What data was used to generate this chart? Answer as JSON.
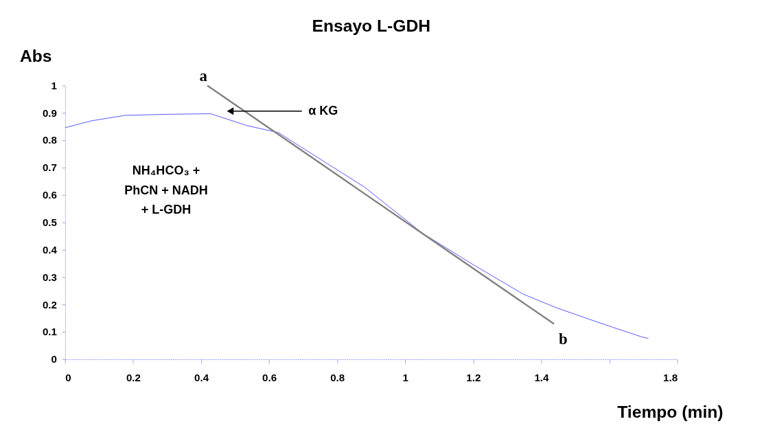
{
  "chart_data": {
    "type": "line",
    "title": "Ensayo L-GDH",
    "xlabel": "Tiempo (min)",
    "ylabel": "Abs",
    "xlim": [
      0,
      1.8
    ],
    "xticks": [
      0,
      0.2,
      0.4,
      0.6,
      0.8,
      1,
      1.2,
      1.4,
      {
        "value": 1.6,
        "label": null
      },
      1.8
    ],
    "ylim": [
      0,
      1
    ],
    "yticks": [
      0,
      0.1,
      0.2,
      0.3,
      0.4,
      0.5,
      0.6,
      0.7,
      0.8,
      0.9,
      1
    ],
    "grid": false,
    "marker": "none",
    "line_style": "solid",
    "series": [
      {
        "color": "#4d4dff",
        "x": [
          0,
          0.077,
          0.176,
          0.3,
          0.428,
          0.534,
          0.627,
          0.773,
          0.879,
          1.05,
          1.202,
          1.347,
          1.445,
          1.544,
          1.61,
          1.695,
          1.715
        ],
        "values": [
          0.846,
          0.871,
          0.891,
          0.895,
          0.897,
          0.854,
          0.828,
          0.713,
          0.63,
          0.461,
          0.344,
          0.238,
          0.188,
          0.145,
          0.117,
          0.082,
          0.076
        ]
      },
      {
        "type": "line",
        "color": "#808080",
        "x": [
          0.418,
          1.4375
        ],
        "values": [
          1.0,
          0.129
        ]
      }
    ],
    "annotations": [
      "a",
      "b",
      "α KG",
      "NH₄HCO₃ + PhCN + NADH + L-GDH"
    ]
  }
}
